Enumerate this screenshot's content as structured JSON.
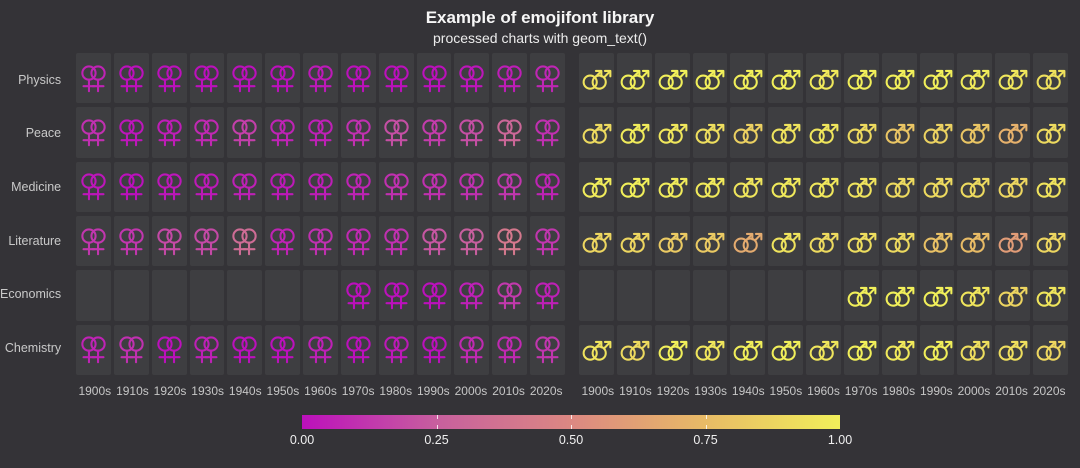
{
  "header": {
    "title": "Example of emojifont library",
    "subtitle": "processed charts with geom_text()"
  },
  "colors": {
    "background": "#343337",
    "tile": "#3e3e41",
    "title_text": "#f7f7f7",
    "axis_text": "#c8c8c8"
  },
  "chart_data": {
    "type": "heatmap",
    "title": "Example of emojifont library",
    "subtitle": "processed charts with geom_text()",
    "rows": [
      "Physics",
      "Peace",
      "Medicine",
      "Literature",
      "Economics",
      "Chemistry"
    ],
    "decades": [
      "1900s",
      "1910s",
      "1920s",
      "1930s",
      "1940s",
      "1950s",
      "1960s",
      "1970s",
      "1980s",
      "1990s",
      "2000s",
      "2010s",
      "2020s"
    ],
    "legend_position": "bottom",
    "value_range": [
      0,
      1
    ],
    "panels": [
      {
        "name": "female-panel",
        "symbol": "double-female",
        "values": [
          [
            0.06,
            0.0,
            0.0,
            0.0,
            0.0,
            0.0,
            0.03,
            0.0,
            0.0,
            0.0,
            0.02,
            0.04,
            0.07
          ],
          [
            0.1,
            0.02,
            0.04,
            0.08,
            0.15,
            0.06,
            0.05,
            0.1,
            0.2,
            0.14,
            0.2,
            0.3,
            0.1
          ],
          [
            0.02,
            0.0,
            0.02,
            0.03,
            0.05,
            0.03,
            0.04,
            0.06,
            0.1,
            0.1,
            0.1,
            0.12,
            0.06
          ],
          [
            0.12,
            0.12,
            0.18,
            0.18,
            0.33,
            0.06,
            0.1,
            0.08,
            0.1,
            0.22,
            0.25,
            0.4,
            0.12
          ],
          [
            null,
            null,
            null,
            null,
            null,
            null,
            null,
            0.0,
            0.0,
            0.0,
            0.05,
            0.13,
            0.05
          ],
          [
            0.06,
            0.1,
            0.0,
            0.05,
            0.0,
            0.0,
            0.05,
            0.0,
            0.03,
            0.0,
            0.08,
            0.08,
            0.12
          ]
        ]
      },
      {
        "name": "male-panel",
        "symbol": "double-male",
        "values": [
          [
            0.94,
            1.0,
            1.0,
            1.0,
            1.0,
            1.0,
            0.97,
            1.0,
            1.0,
            1.0,
            0.98,
            0.96,
            0.93
          ],
          [
            0.9,
            0.98,
            0.96,
            0.92,
            0.85,
            0.94,
            0.95,
            0.9,
            0.8,
            0.86,
            0.8,
            0.7,
            0.9
          ],
          [
            0.98,
            1.0,
            0.98,
            0.97,
            0.95,
            0.97,
            0.96,
            0.94,
            0.9,
            0.9,
            0.9,
            0.88,
            0.94
          ],
          [
            0.88,
            0.88,
            0.82,
            0.82,
            0.67,
            0.94,
            0.9,
            0.92,
            0.9,
            0.78,
            0.75,
            0.6,
            0.88
          ],
          [
            null,
            null,
            null,
            null,
            null,
            null,
            null,
            1.0,
            1.0,
            1.0,
            0.95,
            0.87,
            0.95
          ],
          [
            0.94,
            0.9,
            1.0,
            0.95,
            1.0,
            1.0,
            0.95,
            1.0,
            0.97,
            1.0,
            0.92,
            0.92,
            0.88
          ]
        ]
      }
    ],
    "colorbar": {
      "stops": [
        {
          "at": 0.0,
          "color": "#bc10bc"
        },
        {
          "at": 0.25,
          "color": "#c75f9e"
        },
        {
          "at": 0.5,
          "color": "#dc8882"
        },
        {
          "at": 0.75,
          "color": "#e8bb66"
        },
        {
          "at": 1.0,
          "color": "#f1ef5a"
        }
      ],
      "ticks": [
        {
          "label": "0.00",
          "at": 0.0
        },
        {
          "label": "0.25",
          "at": 0.25
        },
        {
          "label": "0.50",
          "at": 0.5
        },
        {
          "label": "0.75",
          "at": 0.75
        },
        {
          "label": "1.00",
          "at": 1.0
        }
      ]
    }
  }
}
